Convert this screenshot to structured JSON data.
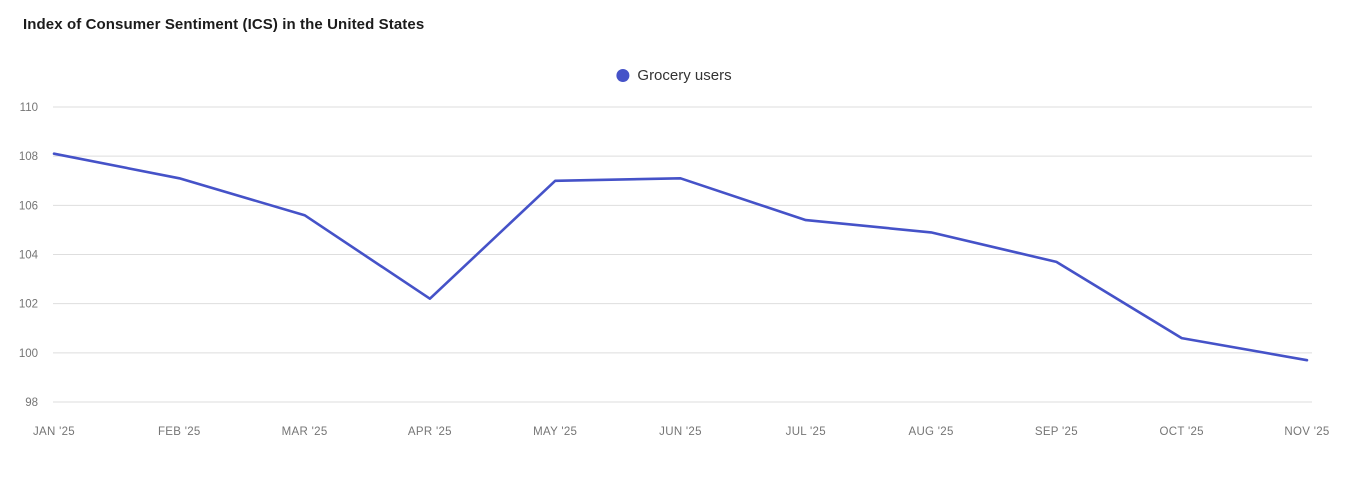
{
  "chart": {
    "title": "Index of Consumer Sentiment (ICS) in the United States"
  },
  "chart_data": {
    "type": "line",
    "title": "Index of Consumer Sentiment (ICS) in the United States",
    "categories": [
      "JAN '25",
      "FEB '25",
      "MAR '25",
      "APR '25",
      "MAY '25",
      "JUN '25",
      "JUL '25",
      "AUG '25",
      "SEP '25",
      "OCT '25",
      "NOV '25"
    ],
    "series": [
      {
        "name": "Grocery users",
        "color": "#4552c8",
        "values": [
          108.1,
          107.1,
          105.6,
          102.2,
          107.0,
          107.1,
          105.4,
          104.9,
          103.7,
          100.6,
          99.7
        ]
      }
    ],
    "ylim": [
      98,
      110
    ],
    "yticks": [
      110,
      108,
      106,
      104,
      102,
      100,
      98
    ],
    "grid": "horizontal",
    "legend_position": "top-center",
    "markers": "none"
  },
  "colors": {
    "line": "#4552c8",
    "gridline": "#dedede",
    "axis_text": "#757575",
    "title_text": "#1c1c1c",
    "legend_text": "#333333",
    "background": "#ffffff"
  }
}
